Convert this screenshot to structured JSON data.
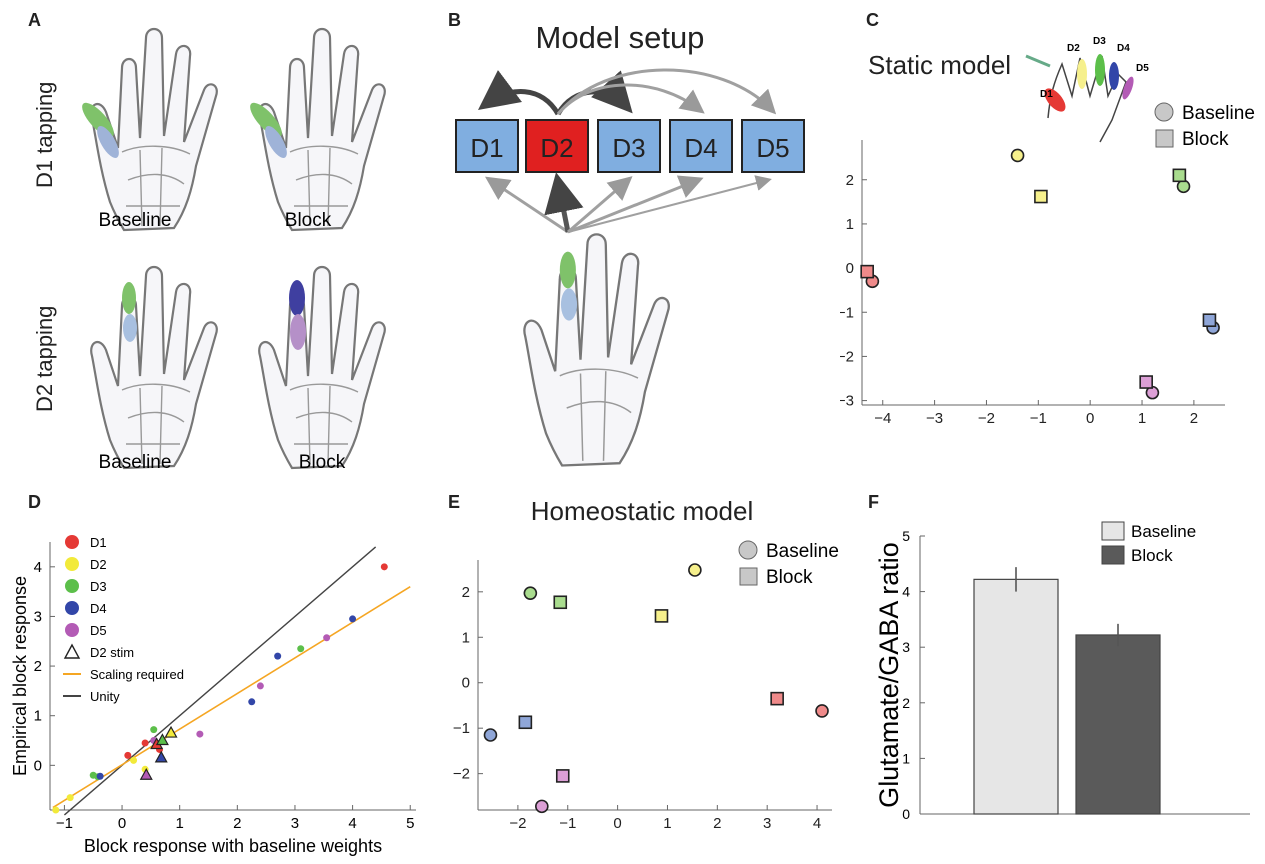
{
  "panels": {
    "a": {
      "label": "A",
      "row1": "D1 tapping",
      "row2": "D2 tapping",
      "cap_baseline": "Baseline",
      "cap_block": "Block"
    },
    "b": {
      "label": "B",
      "title": "Model setup",
      "digits": [
        "D1",
        "D2",
        "D3",
        "D4",
        "D5"
      ]
    },
    "c": {
      "label": "C",
      "title": "Static model",
      "legend": [
        "Baseline",
        "Block"
      ],
      "inset_labels": [
        "D1",
        "D2",
        "D3",
        "D4",
        "D5"
      ]
    },
    "d": {
      "label": "D"
    },
    "e": {
      "label": "E",
      "title": "Homeostatic model",
      "legend": [
        "Baseline",
        "Block"
      ]
    },
    "f": {
      "label": "F"
    }
  },
  "colors": {
    "D1": "#e53935",
    "D2": "#f2ea3a",
    "D3": "#5cbf4a",
    "D4": "#3246a8",
    "D5": "#b35bb5",
    "D1_light": "#ef8a8a",
    "D2_light": "#f6f08c",
    "D3_light": "#a9dc8e",
    "D4_light": "#8fa6d8",
    "D5_light": "#dc9fd6",
    "box_blue": "#80aee0",
    "box_red": "#e02020",
    "orange": "#f5a623"
  },
  "chart_data": [
    {
      "id": "C",
      "type": "scatter",
      "xticks": [
        -4,
        -3,
        -2,
        -1,
        0,
        1,
        2
      ],
      "yticks": [
        2,
        1,
        0,
        -1,
        -2,
        -3
      ],
      "xlim": [
        -4.4,
        2.6
      ],
      "ylim": [
        -3.1,
        2.9
      ],
      "points": [
        {
          "digit": "D1",
          "shape": "circle",
          "x": -4.2,
          "y": -0.3
        },
        {
          "digit": "D1",
          "shape": "square",
          "x": -4.3,
          "y": -0.08
        },
        {
          "digit": "D2",
          "shape": "circle",
          "x": -1.4,
          "y": 2.55
        },
        {
          "digit": "D2",
          "shape": "square",
          "x": -0.95,
          "y": 1.62
        },
        {
          "digit": "D3",
          "shape": "circle",
          "x": 1.8,
          "y": 1.85
        },
        {
          "digit": "D3",
          "shape": "square",
          "x": 1.72,
          "y": 2.1
        },
        {
          "digit": "D4",
          "shape": "circle",
          "x": 2.37,
          "y": -1.35
        },
        {
          "digit": "D4",
          "shape": "square",
          "x": 2.3,
          "y": -1.18
        },
        {
          "digit": "D5",
          "shape": "circle",
          "x": 1.2,
          "y": -2.82
        },
        {
          "digit": "D5",
          "shape": "square",
          "x": 1.08,
          "y": -2.58
        }
      ]
    },
    {
      "id": "D",
      "type": "scatter",
      "xlabel": "Block response with baseline weights",
      "ylabel": "Empirical block response",
      "xticks": [
        -1,
        0,
        1,
        2,
        3,
        4,
        5
      ],
      "yticks": [
        0,
        1,
        2,
        3,
        4
      ],
      "xlim": [
        -1.25,
        5.1
      ],
      "ylim": [
        -0.9,
        4.5
      ],
      "legend": [
        {
          "label": "D1",
          "kind": "dot",
          "color": "#e53935"
        },
        {
          "label": "D2",
          "kind": "dot",
          "color": "#f2ea3a"
        },
        {
          "label": "D3",
          "kind": "dot",
          "color": "#5cbf4a"
        },
        {
          "label": "D4",
          "kind": "dot",
          "color": "#3246a8"
        },
        {
          "label": "D5",
          "kind": "dot",
          "color": "#b35bb5"
        },
        {
          "label": "D2 stim",
          "kind": "triangle",
          "color": "#ffffff"
        },
        {
          "label": "Scaling required",
          "kind": "line",
          "color": "#f5a623"
        },
        {
          "label": "Unity",
          "kind": "line",
          "color": "#444444"
        }
      ],
      "unity_line": [
        [
          -1.0,
          -1.0
        ],
        [
          4.4,
          4.4
        ]
      ],
      "scaling_line": [
        [
          -1.2,
          -0.85
        ],
        [
          5.0,
          3.6
        ]
      ],
      "points": [
        {
          "digit": "D1",
          "x": 4.55,
          "y": 4.0
        },
        {
          "digit": "D1",
          "x": 0.1,
          "y": 0.2
        },
        {
          "digit": "D1",
          "x": 0.65,
          "y": 0.32
        },
        {
          "digit": "D1",
          "x": 0.4,
          "y": 0.45
        },
        {
          "digit": "D2",
          "x": -1.15,
          "y": -0.9
        },
        {
          "digit": "D2",
          "x": -0.9,
          "y": -0.65
        },
        {
          "digit": "D2",
          "x": 0.2,
          "y": 0.1
        },
        {
          "digit": "D2",
          "x": 0.4,
          "y": -0.08
        },
        {
          "digit": "D3",
          "x": -0.5,
          "y": -0.2
        },
        {
          "digit": "D3",
          "x": -0.42,
          "y": -0.23
        },
        {
          "digit": "D3",
          "x": 0.55,
          "y": 0.72
        },
        {
          "digit": "D3",
          "x": 3.1,
          "y": 2.35
        },
        {
          "digit": "D4",
          "x": -0.38,
          "y": -0.22
        },
        {
          "digit": "D4",
          "x": 2.25,
          "y": 1.28
        },
        {
          "digit": "D4",
          "x": 2.7,
          "y": 2.2
        },
        {
          "digit": "D4",
          "x": 4.0,
          "y": 2.95
        },
        {
          "digit": "D5",
          "x": 1.35,
          "y": 0.63
        },
        {
          "digit": "D5",
          "x": 2.4,
          "y": 1.6
        },
        {
          "digit": "D5",
          "x": 3.55,
          "y": 2.57
        },
        {
          "digit": "D5",
          "x": 0.55,
          "y": 0.5
        }
      ],
      "triangles": [
        {
          "digit": "D1",
          "x": 0.6,
          "y": 0.42
        },
        {
          "digit": "D2",
          "x": 0.85,
          "y": 0.65
        },
        {
          "digit": "D3",
          "x": 0.7,
          "y": 0.5
        },
        {
          "digit": "D4",
          "x": 0.68,
          "y": 0.15
        },
        {
          "digit": "D5",
          "x": 0.42,
          "y": -0.2
        }
      ]
    },
    {
      "id": "E",
      "type": "scatter",
      "xticks": [
        -2,
        -1,
        0,
        1,
        2,
        3,
        4
      ],
      "yticks": [
        2,
        1,
        0,
        -1,
        -2
      ],
      "xlim": [
        -2.8,
        4.3
      ],
      "ylim": [
        -2.8,
        2.7
      ],
      "points": [
        {
          "digit": "D1",
          "shape": "circle",
          "x": 4.1,
          "y": -0.62
        },
        {
          "digit": "D1",
          "shape": "square",
          "x": 3.2,
          "y": -0.35
        },
        {
          "digit": "D2",
          "shape": "circle",
          "x": 1.55,
          "y": 2.48
        },
        {
          "digit": "D2",
          "shape": "square",
          "x": 0.88,
          "y": 1.47
        },
        {
          "digit": "D3",
          "shape": "circle",
          "x": -1.75,
          "y": 1.97
        },
        {
          "digit": "D3",
          "shape": "square",
          "x": -1.15,
          "y": 1.77
        },
        {
          "digit": "D4",
          "shape": "circle",
          "x": -2.55,
          "y": -1.15
        },
        {
          "digit": "D4",
          "shape": "square",
          "x": -1.85,
          "y": -0.87
        },
        {
          "digit": "D5",
          "shape": "circle",
          "x": -1.52,
          "y": -2.72
        },
        {
          "digit": "D5",
          "shape": "square",
          "x": -1.1,
          "y": -2.05
        }
      ]
    },
    {
      "id": "F",
      "type": "bar",
      "ylabel": "Glutamate/GABA ratio",
      "categories": [
        "Baseline",
        "Block"
      ],
      "values": [
        4.22,
        3.22
      ],
      "errors": [
        0.22,
        0.2
      ],
      "colors": [
        "#e6e6e6",
        "#5a5a5a"
      ],
      "yticks": [
        0,
        1,
        2,
        3,
        4,
        5
      ],
      "ylim": [
        0,
        5
      ]
    }
  ]
}
